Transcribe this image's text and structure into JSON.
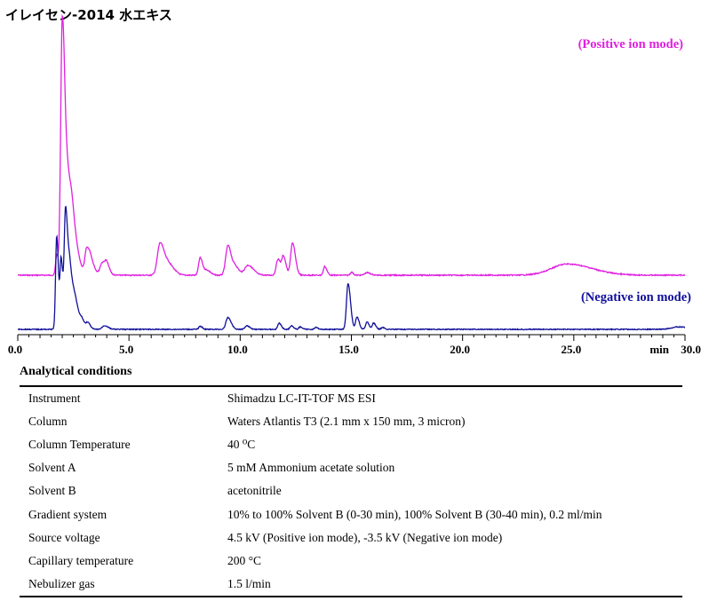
{
  "title": "イレイセン-2014 水エキス",
  "chart_data": {
    "type": "line",
    "xlim": [
      0,
      30
    ],
    "xticks": [
      "0.0",
      "5.0",
      "10.0",
      "15.0",
      "20.0",
      "25.0",
      "30.0"
    ],
    "xunit": "min",
    "series": [
      {
        "name": "(Positive ion mode)",
        "color": "#e020e0",
        "baseline": 0,
        "peaks": [
          {
            "x": 1.75,
            "h": 0.08,
            "w": 0.05
          },
          {
            "x": 2.0,
            "h": 1.0,
            "w": 0.07
          },
          {
            "x": 2.25,
            "h": 0.35,
            "w": 0.12
          },
          {
            "x": 2.5,
            "h": 0.12,
            "w": 0.15
          },
          {
            "x": 3.1,
            "h": 0.1,
            "w": 0.08
          },
          {
            "x": 3.3,
            "h": 0.05,
            "w": 0.1
          },
          {
            "x": 3.8,
            "h": 0.05,
            "w": 0.1
          },
          {
            "x": 4.0,
            "h": 0.035,
            "w": 0.08
          },
          {
            "x": 6.4,
            "h": 0.13,
            "w": 0.12
          },
          {
            "x": 6.8,
            "h": 0.04,
            "w": 0.15
          },
          {
            "x": 8.2,
            "h": 0.07,
            "w": 0.07
          },
          {
            "x": 8.5,
            "h": 0.02,
            "w": 0.1
          },
          {
            "x": 9.45,
            "h": 0.12,
            "w": 0.1
          },
          {
            "x": 9.8,
            "h": 0.03,
            "w": 0.1
          },
          {
            "x": 10.35,
            "h": 0.04,
            "w": 0.15
          },
          {
            "x": 11.7,
            "h": 0.065,
            "w": 0.08
          },
          {
            "x": 11.95,
            "h": 0.07,
            "w": 0.07
          },
          {
            "x": 12.35,
            "h": 0.13,
            "w": 0.08
          },
          {
            "x": 13.8,
            "h": 0.035,
            "w": 0.06
          },
          {
            "x": 15.0,
            "h": 0.012,
            "w": 0.05
          },
          {
            "x": 15.7,
            "h": 0.01,
            "w": 0.1
          },
          {
            "x": 24.7,
            "h": 0.045,
            "w": 0.7
          }
        ]
      },
      {
        "name": "(Negative ion mode)",
        "color": "#10109a",
        "baseline": 0,
        "peaks": [
          {
            "x": 1.75,
            "h": 0.75,
            "w": 0.05
          },
          {
            "x": 1.95,
            "h": 0.55,
            "w": 0.05
          },
          {
            "x": 2.15,
            "h": 0.95,
            "w": 0.06
          },
          {
            "x": 2.35,
            "h": 0.45,
            "w": 0.08
          },
          {
            "x": 2.6,
            "h": 0.2,
            "w": 0.1
          },
          {
            "x": 2.9,
            "h": 0.06,
            "w": 0.08
          },
          {
            "x": 3.15,
            "h": 0.05,
            "w": 0.07
          },
          {
            "x": 3.9,
            "h": 0.03,
            "w": 0.1
          },
          {
            "x": 8.2,
            "h": 0.025,
            "w": 0.06
          },
          {
            "x": 9.45,
            "h": 0.095,
            "w": 0.09
          },
          {
            "x": 10.3,
            "h": 0.03,
            "w": 0.08
          },
          {
            "x": 11.75,
            "h": 0.05,
            "w": 0.06
          },
          {
            "x": 12.3,
            "h": 0.03,
            "w": 0.06
          },
          {
            "x": 12.7,
            "h": 0.02,
            "w": 0.06
          },
          {
            "x": 13.4,
            "h": 0.015,
            "w": 0.06
          },
          {
            "x": 14.85,
            "h": 0.37,
            "w": 0.07
          },
          {
            "x": 15.25,
            "h": 0.1,
            "w": 0.06
          },
          {
            "x": 15.7,
            "h": 0.06,
            "w": 0.06
          },
          {
            "x": 16.0,
            "h": 0.05,
            "w": 0.06
          },
          {
            "x": 16.4,
            "h": 0.015,
            "w": 0.06
          },
          {
            "x": 29.7,
            "h": 0.02,
            "w": 0.3
          }
        ]
      }
    ]
  },
  "conditions": {
    "heading": "Analytical conditions",
    "rows": [
      {
        "label": "Instrument",
        "value": "Shimadzu LC-IT-TOF MS ESI"
      },
      {
        "label": "Column",
        "value": "Waters Atlantis T3 (2.1 mm x 150 mm, 3 micron)"
      },
      {
        "label": "Column Temperature",
        "value": "40 ⁰C"
      },
      {
        "label": "Solvent A",
        "value": "5 mM Ammonium acetate solution"
      },
      {
        "label": "Solvent B",
        "value": "acetonitrile"
      },
      {
        "label": "Gradient system",
        "value": "10% to 100% Solvent B (0-30 min), 100% Solvent B (30-40 min), 0.2 ml/min"
      },
      {
        "label": "Source voltage",
        "value": "4.5 kV (Positive ion mode), -3.5 kV (Negative ion mode)"
      },
      {
        "label": "Capillary temperature",
        "value": "200 °C"
      },
      {
        "label": "Nebulizer gas",
        "value": "1.5 l/min"
      }
    ]
  }
}
